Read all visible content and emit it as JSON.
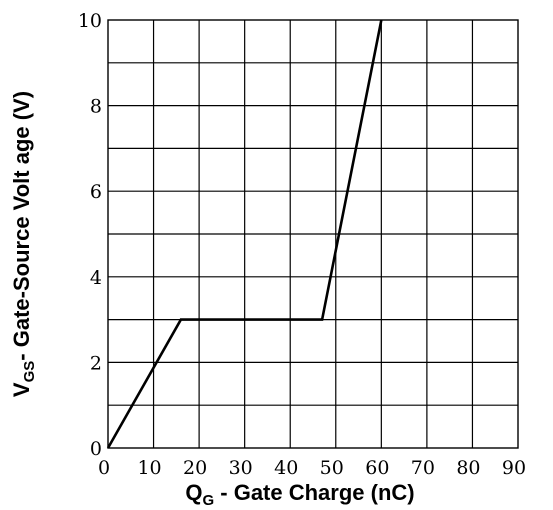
{
  "chart_data": {
    "type": "line",
    "title": "",
    "xlabel": {
      "main": "Q",
      "sub": "G",
      "rest": " - Gate Charge (nC)"
    },
    "ylabel": {
      "main": "V",
      "sub": "GS",
      "rest": "- Gate-Source Volt age (V)"
    },
    "xlim": [
      0,
      90
    ],
    "ylim": [
      0,
      10
    ],
    "x_ticks": [
      "0",
      "10",
      "20",
      "30",
      "40",
      "50",
      "60",
      "70",
      "80",
      "90"
    ],
    "y_ticks": [
      "0",
      "2",
      "4",
      "6",
      "8",
      "10"
    ],
    "x_grid_step": 10,
    "y_grid_step": 1,
    "grid": true,
    "series": [
      {
        "points": [
          [
            0,
            0
          ],
          [
            16,
            3
          ],
          [
            47,
            3
          ],
          [
            60,
            10
          ]
        ],
        "color": "#000000"
      }
    ]
  }
}
